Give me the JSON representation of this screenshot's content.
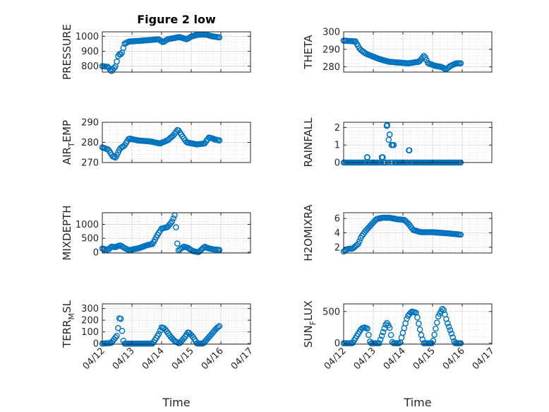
{
  "colors": {
    "marker": "#0072BD",
    "axis": "#262626",
    "grid": "#D9D9D9"
  },
  "chart_data": [
    {
      "type": "scatter",
      "title": "Figure 2 low",
      "xlabel": "",
      "ylabel": "PRESSURE",
      "ylim": [
        760,
        1030
      ],
      "yticks": [
        800,
        900,
        1000
      ],
      "xlim": [
        0,
        5
      ],
      "xticks": [],
      "grid": true,
      "x": [],
      "y": []
    },
    {
      "type": "scatter",
      "title": "",
      "xlabel": "",
      "ylabel": "THETA",
      "ylim": [
        277,
        300
      ],
      "yticks": [
        280,
        290,
        300
      ],
      "xlim": [
        0,
        5
      ],
      "xticks": [],
      "grid": true,
      "x": [],
      "y": []
    },
    {
      "type": "scatter",
      "title": "",
      "xlabel": "",
      "ylabel": "AIR_TEMP",
      "ylim": [
        270,
        290
      ],
      "yticks": [
        270,
        280,
        290
      ],
      "xlim": [
        0,
        5
      ],
      "xticks": [],
      "grid": true,
      "x": [],
      "y": []
    },
    {
      "type": "scatter",
      "title": "",
      "xlabel": "",
      "ylabel": "RAINFALL",
      "ylim": [
        0,
        2.3
      ],
      "yticks": [
        0,
        1,
        2
      ],
      "xlim": [
        0,
        5
      ],
      "xticks": [],
      "grid": true,
      "x": [],
      "y": []
    },
    {
      "type": "scatter",
      "title": "",
      "xlabel": "",
      "ylabel": "MIXDEPTH",
      "ylim": [
        -30,
        1420
      ],
      "yticks": [
        0,
        500,
        1000
      ],
      "xlim": [
        0,
        5
      ],
      "xticks": [],
      "grid": true,
      "x": [],
      "y": []
    },
    {
      "type": "scatter",
      "title": "",
      "xlabel": "",
      "ylabel": "H2OMIXRA",
      "ylim": [
        1.2,
        6.8
      ],
      "yticks": [
        2,
        4,
        6
      ],
      "xlim": [
        0,
        5
      ],
      "xticks": [],
      "grid": true,
      "x": [],
      "y": []
    },
    {
      "type": "scatter",
      "title": "",
      "xlabel": "Time",
      "ylabel": "TERR_MSL",
      "ylim": [
        -5,
        340
      ],
      "yticks": [
        0,
        100,
        200,
        300
      ],
      "xlim": [
        0,
        5
      ],
      "xticks": [
        "04/12",
        "04/13",
        "04/14",
        "04/15",
        "04/16",
        "04/17"
      ],
      "grid": true,
      "x": [],
      "y": []
    },
    {
      "type": "scatter",
      "title": "",
      "xlabel": "Time",
      "ylabel": "SUN_FLUX",
      "ylim": [
        -15,
        620
      ],
      "yticks": [
        0,
        500
      ],
      "xlim": [
        0,
        5
      ],
      "xticks": [
        "04/12",
        "04/13",
        "04/14",
        "04/15",
        "04/16",
        "04/17"
      ],
      "grid": true,
      "x": [],
      "y": []
    }
  ]
}
